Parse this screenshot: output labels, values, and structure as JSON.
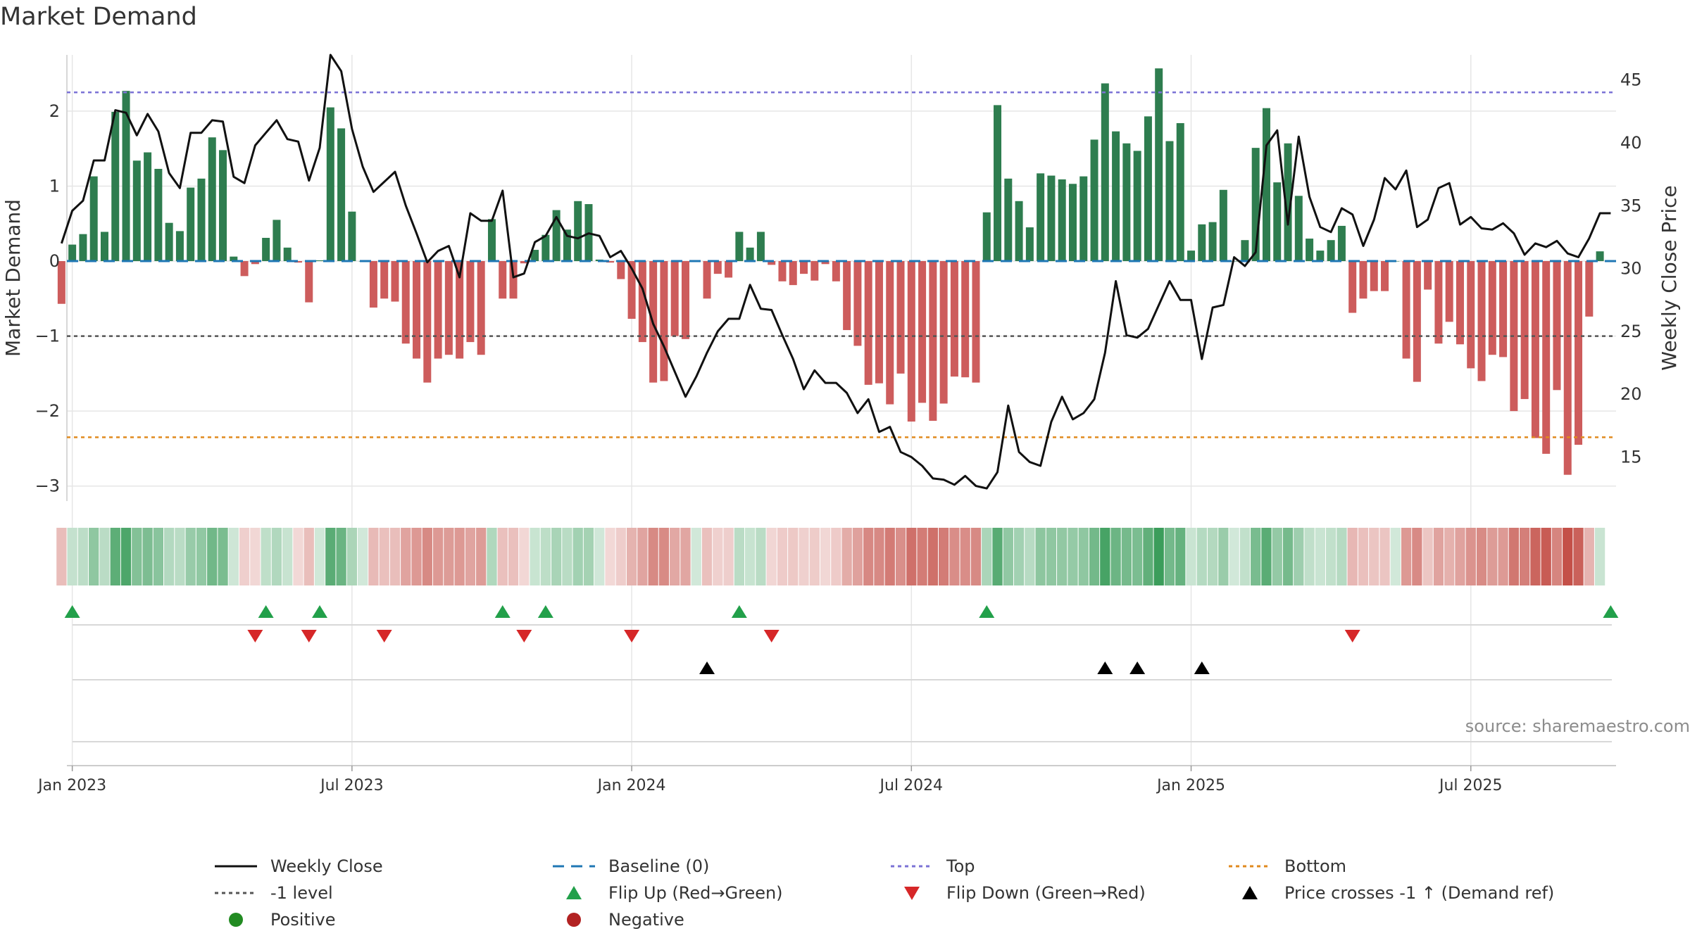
{
  "title": "Market Demand",
  "source": "source: sharemaestro.com",
  "colors": {
    "positive": "#2e7d4f",
    "negative": "#cd5c5c",
    "price": "#111111",
    "baseline": "#1f77b4",
    "top": "#7b72d6",
    "minus1": "#555555",
    "bottom": "#e08a1e",
    "flip_up": "#22a04a",
    "flip_down": "#d62728",
    "cross": "#000000",
    "grid": "#e6e6e6"
  },
  "chart_data": {
    "type": "bar",
    "title": "Market Demand",
    "ylabel": "Market Demand",
    "y2label": "Weekly Close Price",
    "ylim": [
      -3.2,
      2.75
    ],
    "y2lim": [
      11.5,
      47
    ],
    "yticks": [
      -3,
      -2,
      -1,
      0,
      1,
      2
    ],
    "y2ticks": [
      15,
      20,
      25,
      30,
      35,
      40,
      45
    ],
    "x_tick_labels": [
      "Jan 2023",
      "Jul 2023",
      "Jan 2024",
      "Jul 2024",
      "Jan 2025",
      "Jul 2025"
    ],
    "x_tick_weeks": [
      0,
      26,
      52,
      78,
      104,
      130
    ],
    "start_week_offset": -1,
    "reference_lines": {
      "baseline": 0,
      "top": 2.25,
      "minus1": -1,
      "bottom": -2.35
    },
    "demand": [
      -0.57,
      0.22,
      0.36,
      1.13,
      0.39,
      1.99,
      2.27,
      1.34,
      1.45,
      1.23,
      0.51,
      0.4,
      0.98,
      1.1,
      1.65,
      1.48,
      0.06,
      -0.2,
      -0.04,
      0.31,
      0.55,
      0.18,
      -0.02,
      -0.55,
      0.01,
      2.05,
      1.77,
      0.66,
      0.0,
      -0.62,
      -0.5,
      -0.54,
      -1.1,
      -1.3,
      -1.62,
      -1.3,
      -1.25,
      -1.3,
      -1.08,
      -1.25,
      0.56,
      -0.5,
      -0.5,
      -0.03,
      0.15,
      0.35,
      0.68,
      0.42,
      0.8,
      0.76,
      0.02,
      -0.02,
      -0.24,
      -0.77,
      -1.08,
      -1.62,
      -1.6,
      -1.0,
      -1.04,
      0.0,
      -0.5,
      -0.17,
      -0.22,
      0.39,
      0.18,
      0.39,
      -0.05,
      -0.27,
      -0.32,
      -0.17,
      -0.26,
      -0.04,
      -0.27,
      -0.92,
      -1.13,
      -1.65,
      -1.63,
      -1.91,
      -1.5,
      -2.14,
      -1.89,
      -2.13,
      -1.9,
      -1.54,
      -1.55,
      -1.62,
      0.65,
      2.08,
      1.1,
      0.8,
      0.45,
      1.17,
      1.14,
      1.09,
      1.03,
      1.13,
      1.62,
      2.37,
      1.73,
      1.57,
      1.47,
      1.93,
      2.57,
      1.6,
      1.84,
      0.14,
      0.49,
      0.52,
      0.95,
      0.0,
      0.28,
      1.51,
      2.04,
      1.05,
      1.57,
      0.87,
      0.3,
      0.14,
      0.28,
      0.47,
      -0.69,
      -0.5,
      -0.4,
      -0.4,
      0.0,
      -1.3,
      -1.61,
      -0.38,
      -1.1,
      -0.81,
      -1.11,
      -1.43,
      -1.6,
      -1.25,
      -1.28,
      -2.0,
      -1.84,
      -2.36,
      -2.57,
      -1.72,
      -2.85,
      -2.45,
      -0.74,
      0.13
    ],
    "price": [
      32.0,
      34.6,
      35.4,
      38.6,
      38.6,
      42.6,
      42.4,
      40.6,
      42.3,
      40.9,
      37.6,
      36.4,
      40.8,
      40.8,
      41.8,
      41.7,
      37.3,
      36.8,
      39.8,
      40.8,
      41.8,
      40.3,
      40.1,
      37.0,
      39.6,
      47.0,
      45.7,
      41.1,
      38.1,
      36.1,
      36.9,
      37.7,
      35.0,
      32.8,
      30.5,
      31.4,
      31.8,
      29.3,
      34.4,
      33.8,
      33.8,
      36.2,
      29.3,
      29.6,
      32.1,
      32.6,
      34.1,
      32.6,
      32.4,
      32.8,
      32.6,
      30.9,
      31.4,
      30.0,
      28.4,
      25.6,
      23.8,
      21.8,
      19.8,
      21.4,
      23.3,
      25.0,
      26.0,
      26.0,
      28.7,
      26.8,
      26.7,
      24.7,
      22.8,
      20.4,
      21.9,
      20.9,
      20.9,
      20.1,
      18.5,
      19.6,
      17.0,
      17.4,
      15.4,
      15.0,
      14.3,
      13.3,
      13.2,
      12.8,
      13.5,
      12.7,
      12.5,
      13.8,
      19.1,
      15.4,
      14.6,
      14.3,
      17.8,
      19.8,
      18.0,
      18.5,
      19.6,
      23.3,
      29.0,
      24.7,
      24.5,
      25.2,
      27.1,
      29.0,
      27.5,
      27.5,
      22.8,
      26.9,
      27.1,
      30.9,
      30.2,
      31.3,
      39.8,
      41.0,
      33.5,
      40.5,
      35.7,
      33.3,
      32.9,
      34.8,
      34.3,
      31.8,
      33.9,
      37.2,
      36.3,
      37.8,
      33.3,
      33.9,
      36.4,
      36.8,
      33.5,
      34.1,
      33.2,
      33.1,
      33.6,
      32.8,
      31.1,
      32.0,
      31.7,
      32.2,
      31.2,
      30.9,
      32.4,
      34.4,
      34.4
    ],
    "flip_up_weeks": [
      0,
      18,
      23,
      40,
      44,
      62,
      85,
      143
    ],
    "flip_down_weeks": [
      17,
      22,
      29,
      42,
      52,
      65,
      119
    ],
    "price_cross_weeks": [
      59,
      96,
      99,
      105
    ],
    "legend": [
      {
        "key": "price",
        "label": "Weekly Close"
      },
      {
        "key": "baseline",
        "label": "Baseline (0)"
      },
      {
        "key": "top",
        "label": "Top"
      },
      {
        "key": "bottom",
        "label": "Bottom"
      },
      {
        "key": "minus1",
        "label": "-1 level"
      },
      {
        "key": "flip_up",
        "label": "Flip Up (Red→Green)"
      },
      {
        "key": "flip_down",
        "label": "Flip Down (Green→Red)"
      },
      {
        "key": "cross",
        "label": "Price crosses -1 ↑ (Demand ref)"
      },
      {
        "key": "positive",
        "label": "Positive"
      },
      {
        "key": "negative",
        "label": "Negative"
      }
    ]
  }
}
